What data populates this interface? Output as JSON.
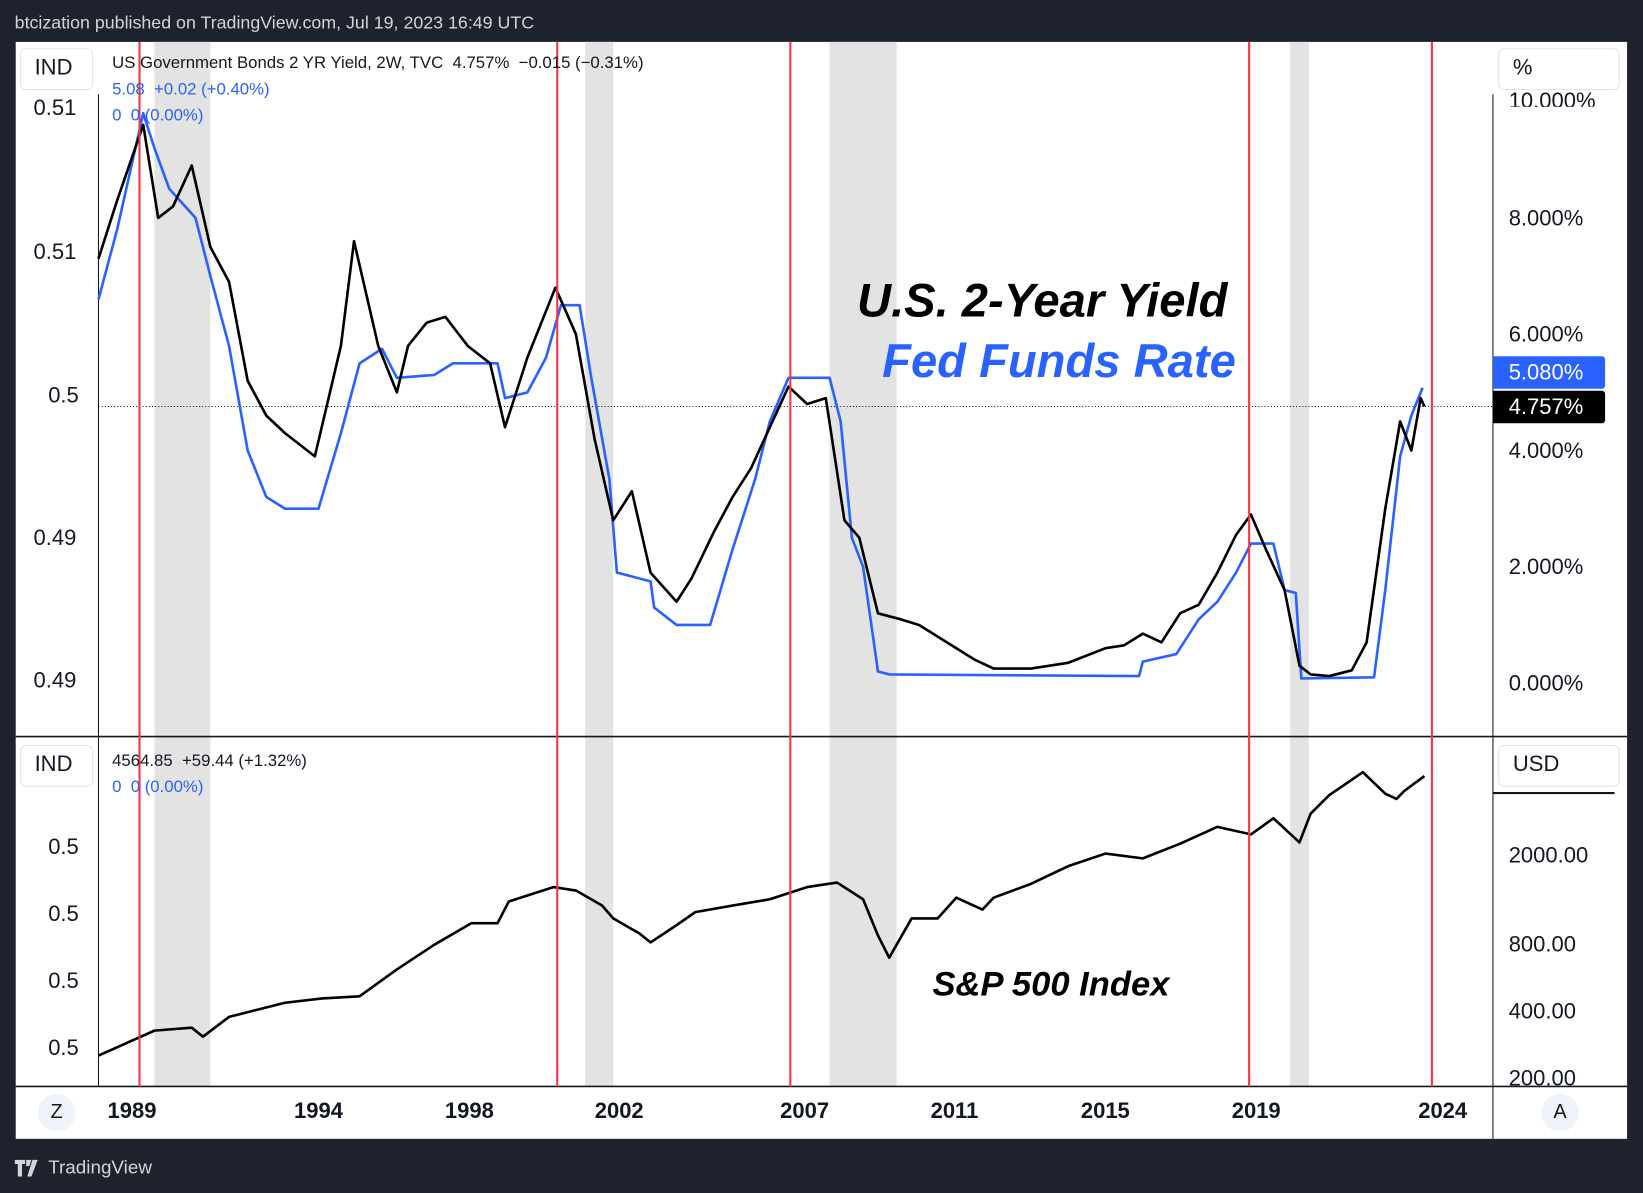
{
  "header": {
    "published": "btcization published on TradingView.com, Jul 19, 2023 16:49 UTC"
  },
  "footer": {
    "brand": "TradingView"
  },
  "colors": {
    "background": "#1e222d",
    "fed_funds": "#2962ff",
    "yield": "#000000",
    "event_line": "#f23645",
    "recession_band": "#e3e3e3"
  },
  "main_pane": {
    "scale_mode": "IND",
    "unit_button": "%",
    "legend_line1": "US Government Bonds 2 YR Yield, 2W, TVC  4.757%  −0.015 (−0.31%)",
    "legend_line2": "5.08  +0.02 (+0.40%)",
    "legend_line3": "0  0 (0.00%)",
    "left_ticks": [
      "0.51",
      "0.51",
      "0.5",
      "0.49",
      "0.49"
    ],
    "right_ticks": [
      "10.000%",
      "8.000%",
      "6.000%",
      "4.000%",
      "2.000%",
      "0.000%"
    ],
    "fed_tag": "5.080%",
    "yield_tag": "4.757%",
    "title1": "U.S. 2-Year Yield",
    "title2": "Fed Funds Rate"
  },
  "lower_pane": {
    "scale_mode": "IND",
    "unit_button": "USD",
    "legend_line1": "4564.85  +59.44 (+1.32%)",
    "legend_line2": "0  0 (0.00%)",
    "left_ticks": [
      "0.5",
      "0.5",
      "0.5",
      "0.5"
    ],
    "right_ticks": [
      "2000.00",
      "800.00",
      "400.00",
      "200.00"
    ],
    "title": "S&P 500 Index"
  },
  "time_axis": {
    "labels": [
      "1989",
      "1994",
      "1998",
      "2002",
      "2007",
      "2011",
      "2015",
      "2019",
      "2024"
    ],
    "zoom_button": "Z",
    "auto_button": "A"
  },
  "chart_data": [
    {
      "type": "line",
      "title": "U.S. 2-Year Yield / Fed Funds Rate",
      "yunit": "%",
      "ylim": [
        0,
        10
      ],
      "xlim": [
        1988,
        2024
      ],
      "series": [
        {
          "name": "US Government Bonds 2 YR Yield",
          "color": "#000000",
          "x": [
            1988.0,
            1988.5,
            1989.2,
            1989.6,
            1990.0,
            1990.5,
            1991.0,
            1991.5,
            1992.0,
            1992.5,
            1993.0,
            1993.8,
            1994.5,
            1994.85,
            1995.5,
            1996.0,
            1996.3,
            1996.8,
            1997.3,
            1997.9,
            1998.5,
            1998.9,
            1999.5,
            2000.25,
            2000.8,
            2001.3,
            2001.8,
            2002.3,
            2002.8,
            2003.5,
            2003.9,
            2004.5,
            2005.0,
            2005.5,
            2006.0,
            2006.5,
            2007.0,
            2007.5,
            2008.0,
            2008.4,
            2008.9,
            2009.5,
            2010.0,
            2010.5,
            2011.0,
            2011.5,
            2012.0,
            2013.0,
            2014.0,
            2015.0,
            2015.5,
            2016.0,
            2016.5,
            2017.0,
            2017.5,
            2018.0,
            2018.5,
            2018.9,
            2019.3,
            2019.8,
            2020.2,
            2020.5,
            2021.0,
            2021.6,
            2022.0,
            2022.5,
            2022.9,
            2023.2,
            2023.45,
            2023.55
          ],
          "y": [
            7.3,
            8.3,
            9.6,
            8.0,
            8.2,
            8.9,
            7.5,
            6.9,
            5.2,
            4.6,
            4.3,
            3.9,
            5.8,
            7.6,
            5.8,
            5.0,
            5.8,
            6.2,
            6.3,
            5.8,
            5.5,
            4.4,
            5.6,
            6.8,
            6.0,
            4.2,
            2.8,
            3.3,
            1.9,
            1.4,
            1.8,
            2.6,
            3.2,
            3.7,
            4.4,
            5.1,
            4.8,
            4.9,
            2.8,
            2.5,
            1.2,
            1.1,
            1.0,
            0.8,
            0.6,
            0.4,
            0.25,
            0.25,
            0.35,
            0.6,
            0.65,
            0.85,
            0.7,
            1.2,
            1.35,
            1.9,
            2.55,
            2.9,
            2.3,
            1.6,
            0.3,
            0.15,
            0.12,
            0.22,
            0.7,
            3.0,
            4.5,
            4.0,
            4.9,
            4.757
          ]
        },
        {
          "name": "Fed Funds Rate",
          "color": "#2962ff",
          "x": [
            1988.0,
            1988.5,
            1989.2,
            1989.5,
            1989.9,
            1990.6,
            1991.0,
            1991.5,
            1992.0,
            1992.5,
            1993.0,
            1993.9,
            1994.5,
            1995.0,
            1995.6,
            1996.0,
            1997.0,
            1997.5,
            1998.7,
            1998.9,
            1999.5,
            2000.0,
            2000.4,
            2000.9,
            2001.2,
            2001.7,
            2001.9,
            2002.8,
            2002.9,
            2003.5,
            2004.4,
            2005.0,
            2005.6,
            2006.0,
            2006.5,
            2007.6,
            2007.9,
            2008.2,
            2008.5,
            2008.9,
            2009.2,
            2015.9,
            2016.0,
            2016.9,
            2017.5,
            2018.0,
            2018.5,
            2018.9,
            2019.5,
            2019.8,
            2020.1,
            2020.25,
            2022.2,
            2022.5,
            2022.9,
            2023.2,
            2023.5
          ],
          "y": [
            6.6,
            7.8,
            9.8,
            9.2,
            8.5,
            8.0,
            7.0,
            5.8,
            4.0,
            3.2,
            3.0,
            3.0,
            4.3,
            5.5,
            5.75,
            5.25,
            5.3,
            5.5,
            5.5,
            4.9,
            5.0,
            5.6,
            6.5,
            6.5,
            5.3,
            3.5,
            1.9,
            1.75,
            1.3,
            1.0,
            1.0,
            2.3,
            3.5,
            4.5,
            5.25,
            5.25,
            4.5,
            2.5,
            2.0,
            0.2,
            0.15,
            0.12,
            0.37,
            0.5,
            1.1,
            1.4,
            1.9,
            2.4,
            2.4,
            1.6,
            1.55,
            0.08,
            0.1,
            1.6,
            3.9,
            4.6,
            5.08
          ]
        }
      ]
    },
    {
      "type": "line",
      "title": "S&P 500 Index",
      "yscale": "log",
      "ylim": [
        200,
        5000
      ],
      "xlim": [
        1988,
        2024
      ],
      "series": [
        {
          "name": "S&P 500 Index",
          "color": "#000000",
          "x": [
            1988.0,
            1989.5,
            1990.5,
            1990.8,
            1991.5,
            1993.0,
            1994.0,
            1995.0,
            1996.0,
            1997.0,
            1998.0,
            1998.7,
            1999.0,
            2000.2,
            2000.8,
            2001.5,
            2001.8,
            2002.5,
            2002.8,
            2003.5,
            2004.0,
            2005.0,
            2006.0,
            2007.0,
            2007.8,
            2008.5,
            2008.9,
            2009.2,
            2009.8,
            2010.5,
            2011.0,
            2011.7,
            2012.0,
            2013.0,
            2014.0,
            2015.0,
            2016.0,
            2017.0,
            2018.0,
            2018.9,
            2019.5,
            2020.2,
            2020.5,
            2021.0,
            2021.9,
            2022.5,
            2022.8,
            2023.0,
            2023.55
          ],
          "y": [
            255,
            330,
            340,
            310,
            380,
            440,
            460,
            470,
            620,
            800,
            1000,
            1000,
            1250,
            1450,
            1400,
            1200,
            1050,
            900,
            820,
            980,
            1120,
            1200,
            1280,
            1450,
            1520,
            1280,
            880,
            700,
            1050,
            1050,
            1300,
            1150,
            1300,
            1500,
            1800,
            2050,
            1950,
            2270,
            2700,
            2500,
            2950,
            2300,
            3100,
            3750,
            4750,
            3800,
            3600,
            3900,
            4564.85
          ]
        }
      ]
    }
  ],
  "event_lines": [
    1989.1,
    2000.3,
    2006.55,
    2018.85,
    2023.75
  ],
  "recession_bands": [
    [
      1989.5,
      1991.0
    ],
    [
      2001.05,
      2001.8
    ],
    [
      2007.6,
      2009.4
    ],
    [
      2019.95,
      2020.45
    ]
  ]
}
